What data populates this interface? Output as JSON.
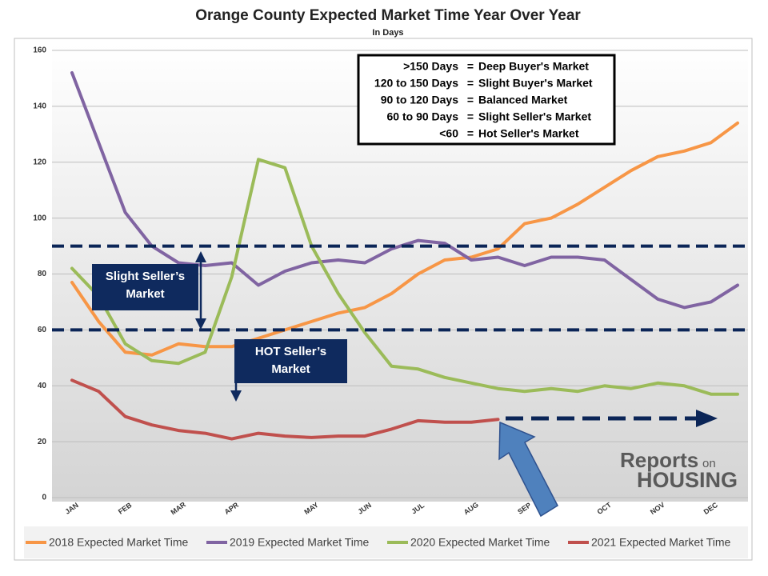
{
  "chart_data": {
    "type": "line",
    "title": "Orange County Expected Market Time Year Over Year",
    "subtitle": "In Days",
    "categories": [
      "JAN",
      null,
      "FEB",
      null,
      "MAR",
      null,
      "APR",
      null,
      null,
      "MAY",
      null,
      "JUN",
      null,
      "JUL",
      null,
      "AUG",
      null,
      "SEP",
      null,
      null,
      "OCT",
      null,
      "NOV",
      null,
      "DEC",
      null
    ],
    "series": [
      {
        "name": "2018 Expected Market Time",
        "color": "#f79646",
        "values": [
          77,
          63,
          52,
          51,
          55,
          54,
          54,
          57,
          60,
          63,
          66,
          68,
          73,
          80,
          85,
          86,
          89,
          98,
          100,
          105,
          111,
          117,
          122,
          124,
          127,
          134
        ]
      },
      {
        "name": "2019 Expected Market Time",
        "color": "#8064a2",
        "values": [
          152,
          127,
          102,
          90,
          84,
          83,
          84,
          76,
          81,
          84,
          85,
          84,
          89,
          92,
          91,
          85,
          86,
          83,
          86,
          86,
          85,
          78,
          71,
          68,
          70,
          76
        ]
      },
      {
        "name": "2020 Expected Market Time",
        "color": "#9bbb59",
        "values": [
          82,
          72,
          55,
          49,
          48,
          52,
          79,
          121,
          118,
          90,
          73,
          59,
          47,
          46,
          43,
          41,
          39,
          38,
          39,
          38,
          40,
          39,
          41,
          40,
          37,
          37
        ]
      },
      {
        "name": "2021 Expected Market Time",
        "color": "#c0504d",
        "values": [
          42,
          38,
          29,
          26,
          24,
          23,
          21,
          23,
          22,
          21.5,
          22,
          22,
          24.5,
          27.5,
          27,
          27,
          28,
          null,
          null,
          null,
          null,
          null,
          null,
          null,
          null,
          null
        ]
      }
    ],
    "ylim": [
      0,
      160
    ],
    "yticks": [
      0,
      20,
      40,
      60,
      80,
      100,
      120,
      140,
      160
    ],
    "reference_lines": [
      90,
      60
    ],
    "key": {
      "separator": "=",
      "rows": [
        {
          "range": ">150 Days",
          "market": "Deep Buyer's Market"
        },
        {
          "range": "120 to 150 Days",
          "market": "Slight Buyer's Market"
        },
        {
          "range": "90 to 120 Days",
          "market": "Balanced Market"
        },
        {
          "range": "60 to 90 Days",
          "market": "Slight Seller's Market"
        },
        {
          "range": "<60",
          "market": "Hot Seller's Market"
        }
      ]
    },
    "annotations": [
      {
        "lines": [
          "Slight Seller’s",
          "Market"
        ]
      },
      {
        "lines": [
          "HOT Seller’s",
          "Market"
        ]
      }
    ],
    "logo": {
      "word1": "Reports",
      "word2": "on",
      "word3": "HOUSING"
    }
  }
}
